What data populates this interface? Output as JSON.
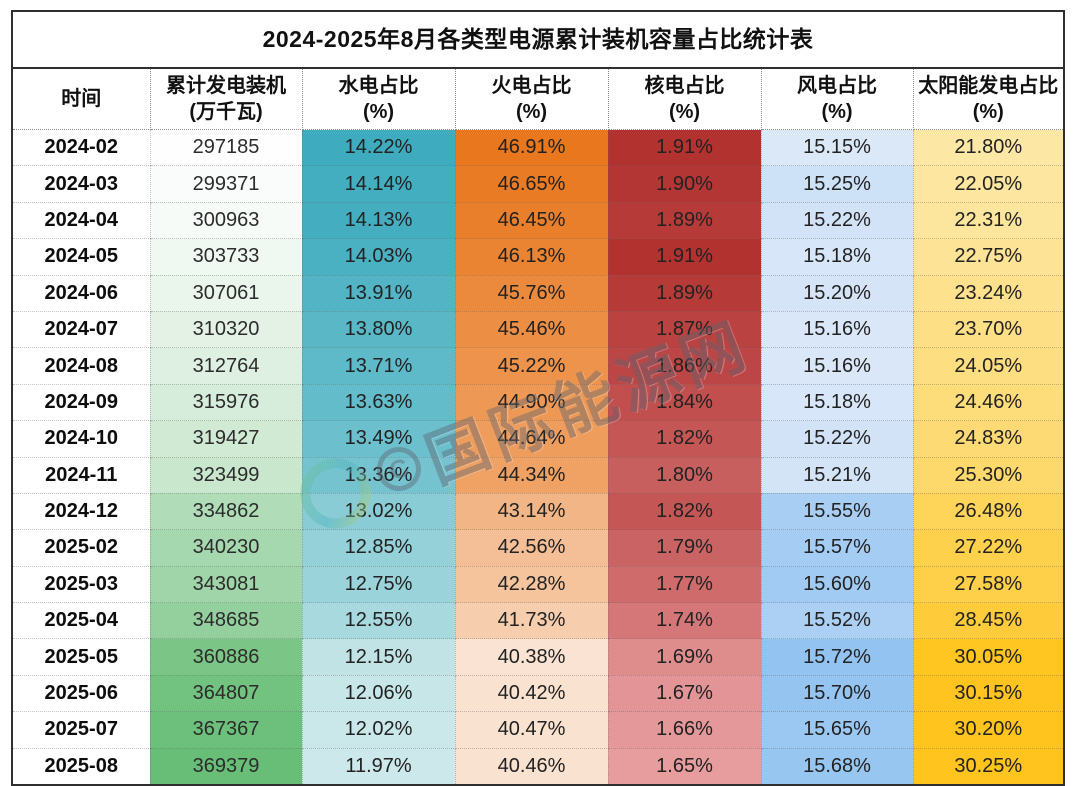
{
  "title": "2024-2025年8月各类型电源累计装机容量占比统计表",
  "watermark": {
    "text": "国际能源网",
    "badge": "C"
  },
  "chart_data": {
    "type": "table",
    "title": "2024-2025年8月各类型电源累计装机容量占比统计表",
    "columns": [
      {
        "label": "时间",
        "unit": ""
      },
      {
        "label": "累计发电装机",
        "unit": "(万千瓦)"
      },
      {
        "label": "水电占比",
        "unit": "(%)"
      },
      {
        "label": "火电占比",
        "unit": "(%)"
      },
      {
        "label": "核电占比",
        "unit": "(%)"
      },
      {
        "label": "风电占比",
        "unit": "(%)"
      },
      {
        "label": "太阳能发电占比",
        "unit": "(%)"
      }
    ],
    "percent_columns": [
      2,
      3,
      4,
      5,
      6
    ],
    "rows": [
      [
        "2024-02",
        297185,
        14.22,
        46.91,
        1.91,
        15.15,
        21.8
      ],
      [
        "2024-03",
        299371,
        14.14,
        46.65,
        1.9,
        15.25,
        22.05
      ],
      [
        "2024-04",
        300963,
        14.13,
        46.45,
        1.89,
        15.22,
        22.31
      ],
      [
        "2024-05",
        303733,
        14.03,
        46.13,
        1.91,
        15.18,
        22.75
      ],
      [
        "2024-06",
        307061,
        13.91,
        45.76,
        1.89,
        15.2,
        23.24
      ],
      [
        "2024-07",
        310320,
        13.8,
        45.46,
        1.87,
        15.16,
        23.7
      ],
      [
        "2024-08",
        312764,
        13.71,
        45.22,
        1.86,
        15.16,
        24.05
      ],
      [
        "2024-09",
        315976,
        13.63,
        44.9,
        1.84,
        15.18,
        24.46
      ],
      [
        "2024-10",
        319427,
        13.49,
        44.64,
        1.82,
        15.22,
        24.83
      ],
      [
        "2024-11",
        323499,
        13.36,
        44.34,
        1.8,
        15.21,
        25.3
      ],
      [
        "2024-12",
        334862,
        13.02,
        43.14,
        1.82,
        15.55,
        26.48
      ],
      [
        "2025-02",
        340230,
        12.85,
        42.56,
        1.79,
        15.57,
        27.22
      ],
      [
        "2025-03",
        343081,
        12.75,
        42.28,
        1.77,
        15.6,
        27.58
      ],
      [
        "2025-04",
        348685,
        12.55,
        41.73,
        1.74,
        15.52,
        28.45
      ],
      [
        "2025-05",
        360886,
        12.15,
        40.38,
        1.69,
        15.72,
        30.05
      ],
      [
        "2025-06",
        364807,
        12.06,
        40.42,
        1.67,
        15.7,
        30.15
      ],
      [
        "2025-07",
        367367,
        12.02,
        40.47,
        1.66,
        15.65,
        30.2
      ],
      [
        "2025-08",
        369379,
        11.97,
        40.46,
        1.65,
        15.68,
        30.25
      ]
    ],
    "color_scales": {
      "1": {
        "min_value": 297185,
        "max_value": 369379,
        "min_color": "#FEFEFE",
        "max_color": "#69BE77"
      },
      "2": {
        "min_value": 11.97,
        "max_value": 14.22,
        "min_color": "#CDE8EA",
        "max_color": "#3EACBE"
      },
      "3": {
        "min_value": 40.38,
        "max_value": 46.91,
        "min_color": "#FAE3D2",
        "max_color": "#E8771D"
      },
      "4": {
        "min_value": 1.65,
        "max_value": 1.91,
        "min_color": "#E79C9E",
        "max_color": "#B23230"
      },
      "5": {
        "min_value": 15.15,
        "max_value": 15.72,
        "min_color": "#DBE8F8",
        "max_color": "#92C3F1"
      },
      "6": {
        "min_value": 21.8,
        "max_value": 30.25,
        "min_color": "#FCE7A4",
        "max_color": "#FFC41D"
      }
    },
    "layout": {
      "grid": "dotted",
      "border_color": "#2f2f2f",
      "text_color": "#222222"
    }
  }
}
